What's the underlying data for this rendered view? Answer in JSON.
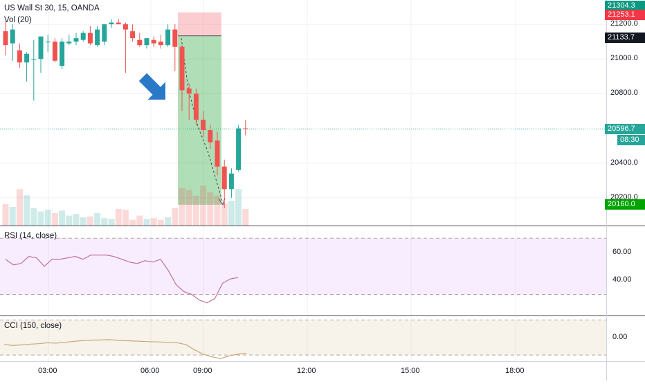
{
  "chart_data": {
    "type": "candlestick",
    "title": "US Wall St 30, 15, OANDA",
    "volume_label": "Vol (20)",
    "x_ticks": [
      "03:00",
      "06:00",
      "09:00",
      "12:00",
      "15:00",
      "18:00"
    ],
    "price_axis": {
      "ticks": [
        "21200.0",
        "21000.0",
        "20800.0",
        "20400.0",
        "20200.0"
      ],
      "ylim": [
        20040,
        21340
      ]
    },
    "price_tags": [
      {
        "key": "top",
        "value": "21304.3",
        "color": "#089981"
      },
      {
        "key": "stop",
        "value": "21253.1",
        "color": "#f23645"
      },
      {
        "key": "entry",
        "value": "21133.7",
        "color": "#131722"
      },
      {
        "key": "last",
        "value": "20596.7",
        "color": "#26a69a"
      },
      {
        "key": "countdown",
        "value": "08:30",
        "color": "#26a69a"
      },
      {
        "key": "target",
        "value": "20160.0",
        "color": "#00a400"
      }
    ],
    "position": {
      "side": "short",
      "entry": 21133.7,
      "stop": 21253.1,
      "target": 20160.0
    },
    "candles": [
      {
        "o": 21160,
        "h": 21220,
        "l": 21020,
        "c": 21080
      },
      {
        "o": 21090,
        "h": 21200,
        "l": 20990,
        "c": 21170
      },
      {
        "o": 21050,
        "h": 21090,
        "l": 20950,
        "c": 20980
      },
      {
        "o": 20980,
        "h": 21040,
        "l": 20870,
        "c": 21030
      },
      {
        "o": 21000,
        "h": 21110,
        "l": 20760,
        "c": 21000
      },
      {
        "o": 21000,
        "h": 21120,
        "l": 20920,
        "c": 21130
      },
      {
        "o": 21100,
        "h": 21140,
        "l": 21040,
        "c": 21100
      },
      {
        "o": 21100,
        "h": 21120,
        "l": 20980,
        "c": 20990
      },
      {
        "o": 20960,
        "h": 21120,
        "l": 20940,
        "c": 21100
      },
      {
        "o": 21090,
        "h": 21140,
        "l": 21080,
        "c": 21100
      },
      {
        "o": 21100,
        "h": 21150,
        "l": 21080,
        "c": 21120
      },
      {
        "o": 21110,
        "h": 21160,
        "l": 21100,
        "c": 21150
      },
      {
        "o": 21150,
        "h": 21190,
        "l": 21080,
        "c": 21090
      },
      {
        "o": 21080,
        "h": 21190,
        "l": 21070,
        "c": 21170
      },
      {
        "o": 21100,
        "h": 21200,
        "l": 21080,
        "c": 21200
      },
      {
        "o": 21200,
        "h": 21230,
        "l": 21180,
        "c": 21210
      },
      {
        "o": 21210,
        "h": 21230,
        "l": 21200,
        "c": 21200
      },
      {
        "o": 21200,
        "h": 21210,
        "l": 20920,
        "c": 21170
      },
      {
        "o": 21160,
        "h": 21200,
        "l": 21100,
        "c": 21120
      },
      {
        "o": 21110,
        "h": 21150,
        "l": 21070,
        "c": 21080
      },
      {
        "o": 21080,
        "h": 21120,
        "l": 21060,
        "c": 21120
      },
      {
        "o": 21110,
        "h": 21130,
        "l": 21070,
        "c": 21090
      },
      {
        "o": 21100,
        "h": 21140,
        "l": 21060,
        "c": 21080
      },
      {
        "o": 21080,
        "h": 21200,
        "l": 21070,
        "c": 21170
      },
      {
        "o": 21170,
        "h": 21200,
        "l": 20930,
        "c": 21070
      },
      {
        "o": 21070,
        "h": 21080,
        "l": 20700,
        "c": 20820
      },
      {
        "o": 20830,
        "h": 20860,
        "l": 20650,
        "c": 20800
      },
      {
        "o": 20800,
        "h": 20830,
        "l": 20620,
        "c": 20650
      },
      {
        "o": 20650,
        "h": 20700,
        "l": 20550,
        "c": 20590
      },
      {
        "o": 20590,
        "h": 20620,
        "l": 20480,
        "c": 20520
      },
      {
        "o": 20530,
        "h": 20580,
        "l": 20330,
        "c": 20380
      },
      {
        "o": 20380,
        "h": 20420,
        "l": 20140,
        "c": 20250
      },
      {
        "o": 20250,
        "h": 20370,
        "l": 20200,
        "c": 20340
      },
      {
        "o": 20360,
        "h": 20620,
        "l": 20350,
        "c": 20600
      },
      {
        "o": 20600,
        "h": 20650,
        "l": 20560,
        "c": 20597
      }
    ],
    "volume": [
      52,
      45,
      88,
      73,
      42,
      34,
      38,
      30,
      36,
      24,
      28,
      20,
      22,
      30,
      18,
      16,
      40,
      38,
      14,
      24,
      16,
      18,
      14,
      20,
      42,
      90,
      86,
      72,
      96,
      80,
      72,
      54,
      60,
      88,
      40
    ],
    "rsi": {
      "label": "RSI (14, close)",
      "ticks": [
        "60.00",
        "40.00"
      ],
      "band": [
        30,
        70
      ],
      "values": [
        55,
        51,
        52,
        57,
        56,
        50,
        55,
        55,
        56,
        57,
        55,
        58,
        58,
        58,
        57,
        55,
        53,
        52,
        54,
        53,
        55,
        47,
        37,
        32,
        30,
        26,
        24,
        27,
        38,
        41,
        42
      ]
    },
    "cci": {
      "label": "CCI (150, close)",
      "ticks": [
        "0.00"
      ],
      "band": [
        -100,
        100
      ],
      "values": [
        -40,
        -45,
        -42,
        -38,
        -35,
        -30,
        -32,
        -28,
        -22,
        -18,
        -15,
        -14,
        -12,
        -15,
        -18,
        -20,
        -22,
        -24,
        -25,
        -28,
        -30,
        -40,
        -70,
        -95,
        -110,
        -120,
        -105,
        -95,
        -90
      ]
    }
  }
}
